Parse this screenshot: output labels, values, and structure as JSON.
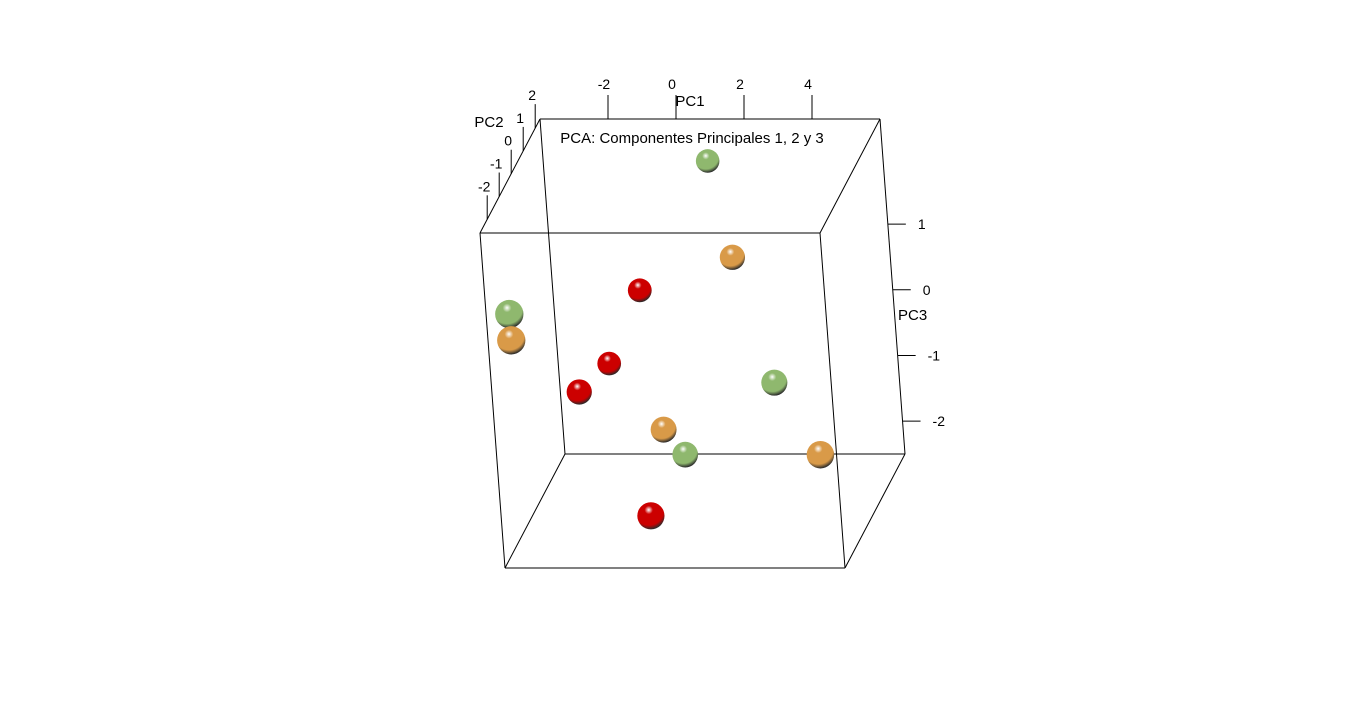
{
  "chart_data": {
    "type": "scatter",
    "title": "PCA: Componentes Principales 1, 2 y 3",
    "axes": {
      "x": {
        "label": "PC1",
        "ticks": [
          "-2",
          "0",
          "2",
          "4"
        ],
        "tick_values": [
          -2,
          0,
          2,
          4
        ],
        "range": [
          -4,
          6
        ]
      },
      "y": {
        "label": "PC2",
        "ticks": [
          "-2",
          "-1",
          "0",
          "1",
          "2"
        ],
        "tick_values": [
          -2,
          -1,
          0,
          1,
          2
        ],
        "range": [
          -2.6,
          2.4
        ]
      },
      "z": {
        "label": "PC3",
        "ticks": [
          "1",
          "0",
          "-1",
          "-2"
        ],
        "tick_values": [
          1,
          0,
          -1,
          -2
        ],
        "range": [
          -2.5,
          2.6
        ]
      }
    },
    "grid": false,
    "legend": "none",
    "colors": {
      "red": "#cc0000",
      "orange": "#d99a48",
      "green": "#8fb86e"
    },
    "points": [
      {
        "pc1": 1.0,
        "pc2": 2.0,
        "pc3": 2.1,
        "group": "green"
      },
      {
        "pc1": 2.0,
        "pc2": 0.8,
        "pc3": 1.05,
        "group": "orange"
      },
      {
        "pc1": -3.8,
        "pc2": -1.4,
        "pc3": 0.95,
        "group": "green"
      },
      {
        "pc1": -3.8,
        "pc2": -1.4,
        "pc3": 0.55,
        "group": "orange"
      },
      {
        "pc1": -1.2,
        "pc2": 1.8,
        "pc3": 0.2,
        "group": "red"
      },
      {
        "pc1": 3.2,
        "pc2": 0.2,
        "pc3": -0.65,
        "group": "green"
      },
      {
        "pc1": -2.3,
        "pc2": 1.9,
        "pc3": -0.95,
        "group": "red"
      },
      {
        "pc1": -2.8,
        "pc2": 0.8,
        "pc3": -1.0,
        "group": "red"
      },
      {
        "pc1": -0.2,
        "pc2": 0.3,
        "pc3": -1.4,
        "group": "orange"
      },
      {
        "pc1": 0.3,
        "pc2": 0.5,
        "pc3": -1.85,
        "group": "green"
      },
      {
        "pc1": 4.8,
        "pc2": -0.8,
        "pc3": -1.4,
        "group": "orange"
      },
      {
        "pc1": -0.4,
        "pc2": -0.6,
        "pc3": -2.4,
        "group": "red"
      }
    ]
  }
}
